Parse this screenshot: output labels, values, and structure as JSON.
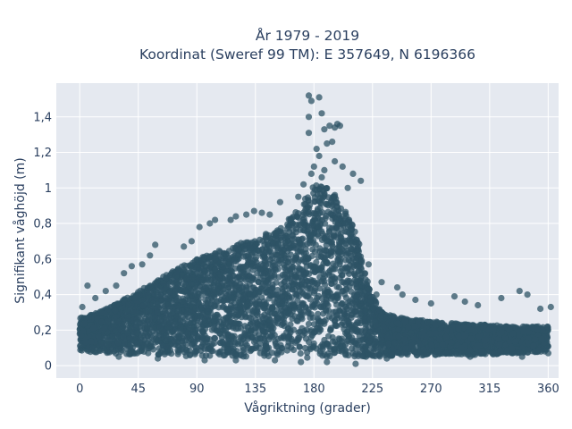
{
  "chart_data": {
    "type": "scatter",
    "title": "År 1979 - 2019",
    "subtitle": "Koordinat (Sweref 99 TM): E 357649, N 6196366",
    "xlabel": "Vågriktning (grader)",
    "ylabel": "Signifikant våghöjd (m)",
    "xlim": [
      -18,
      368
    ],
    "ylim": [
      -0.07,
      1.59
    ],
    "x_ticks": [
      0,
      45,
      90,
      135,
      180,
      225,
      270,
      315,
      360
    ],
    "x_tick_labels": [
      "0",
      "45",
      "90",
      "135",
      "180",
      "225",
      "270",
      "315",
      "360"
    ],
    "y_ticks": [
      0,
      0.2,
      0.4,
      0.6,
      0.8,
      1.0,
      1.2,
      1.4
    ],
    "y_tick_labels": [
      "0",
      "0,2",
      "0,4",
      "0,6",
      "0,8",
      "1",
      "1,2",
      "1,4"
    ],
    "grid": true,
    "plot_background": "#e5e9f0",
    "marker_color": "#2e5366",
    "upper_envelope": [
      [
        0,
        0.27
      ],
      [
        15,
        0.3
      ],
      [
        30,
        0.36
      ],
      [
        45,
        0.42
      ],
      [
        60,
        0.48
      ],
      [
        75,
        0.55
      ],
      [
        90,
        0.6
      ],
      [
        105,
        0.64
      ],
      [
        120,
        0.68
      ],
      [
        135,
        0.72
      ],
      [
        150,
        0.76
      ],
      [
        160,
        0.82
      ],
      [
        170,
        0.9
      ],
      [
        180,
        1.02
      ],
      [
        190,
        1.0
      ],
      [
        200,
        0.92
      ],
      [
        210,
        0.8
      ],
      [
        215,
        0.68
      ],
      [
        220,
        0.5
      ],
      [
        225,
        0.4
      ],
      [
        230,
        0.32
      ],
      [
        240,
        0.28
      ],
      [
        255,
        0.26
      ],
      [
        270,
        0.25
      ],
      [
        285,
        0.24
      ],
      [
        300,
        0.23
      ],
      [
        315,
        0.23
      ],
      [
        330,
        0.22
      ],
      [
        345,
        0.22
      ],
      [
        360,
        0.22
      ]
    ],
    "lower_envelope": [
      [
        0,
        0.08
      ],
      [
        45,
        0.06
      ],
      [
        90,
        0.05
      ],
      [
        135,
        0.05
      ],
      [
        180,
        0.04
      ],
      [
        225,
        0.05
      ],
      [
        270,
        0.06
      ],
      [
        315,
        0.06
      ],
      [
        360,
        0.08
      ]
    ],
    "outliers": [
      [
        176,
        1.52
      ],
      [
        178,
        1.49
      ],
      [
        184,
        1.51
      ],
      [
        176,
        1.4
      ],
      [
        186,
        1.42
      ],
      [
        192,
        1.35
      ],
      [
        196,
        1.34
      ],
      [
        198,
        1.36
      ],
      [
        200,
        1.35
      ],
      [
        188,
        1.33
      ],
      [
        194,
        1.26
      ],
      [
        176,
        1.31
      ],
      [
        182,
        1.22
      ],
      [
        190,
        1.25
      ],
      [
        184,
        1.18
      ],
      [
        180,
        1.12
      ],
      [
        196,
        1.15
      ],
      [
        202,
        1.12
      ],
      [
        210,
        1.08
      ],
      [
        216,
        1.04
      ],
      [
        178,
        1.08
      ],
      [
        188,
        1.1
      ],
      [
        206,
        1.0
      ],
      [
        172,
        1.02
      ],
      [
        168,
        0.95
      ],
      [
        154,
        0.92
      ],
      [
        146,
        0.85
      ],
      [
        140,
        0.86
      ],
      [
        134,
        0.87
      ],
      [
        128,
        0.85
      ],
      [
        120,
        0.84
      ],
      [
        116,
        0.82
      ],
      [
        104,
        0.82
      ],
      [
        100,
        0.8
      ],
      [
        92,
        0.78
      ],
      [
        86,
        0.7
      ],
      [
        80,
        0.67
      ],
      [
        58,
        0.68
      ],
      [
        54,
        0.62
      ],
      [
        48,
        0.57
      ],
      [
        40,
        0.56
      ],
      [
        34,
        0.52
      ],
      [
        28,
        0.45
      ],
      [
        6,
        0.45
      ],
      [
        20,
        0.42
      ],
      [
        12,
        0.38
      ],
      [
        2,
        0.33
      ],
      [
        362,
        0.33
      ],
      [
        354,
        0.32
      ],
      [
        344,
        0.4
      ],
      [
        338,
        0.42
      ],
      [
        324,
        0.38
      ],
      [
        306,
        0.34
      ],
      [
        296,
        0.36
      ],
      [
        288,
        0.39
      ],
      [
        270,
        0.35
      ],
      [
        258,
        0.37
      ],
      [
        248,
        0.4
      ],
      [
        244,
        0.44
      ],
      [
        232,
        0.47
      ],
      [
        228,
        0.4
      ],
      [
        216,
        0.55
      ],
      [
        222,
        0.57
      ],
      [
        214,
        0.62
      ],
      [
        208,
        0.7
      ],
      [
        204,
        0.8
      ],
      [
        196,
        0.96
      ],
      [
        186,
        1.06
      ],
      [
        236,
        0.04
      ],
      [
        212,
        0.01
      ],
      [
        190,
        0.02
      ],
      [
        170,
        0.02
      ],
      [
        150,
        0.03
      ],
      [
        120,
        0.03
      ],
      [
        96,
        0.03
      ],
      [
        60,
        0.04
      ],
      [
        30,
        0.05
      ],
      [
        360,
        0.07
      ],
      [
        340,
        0.05
      ],
      [
        300,
        0.05
      ]
    ]
  }
}
